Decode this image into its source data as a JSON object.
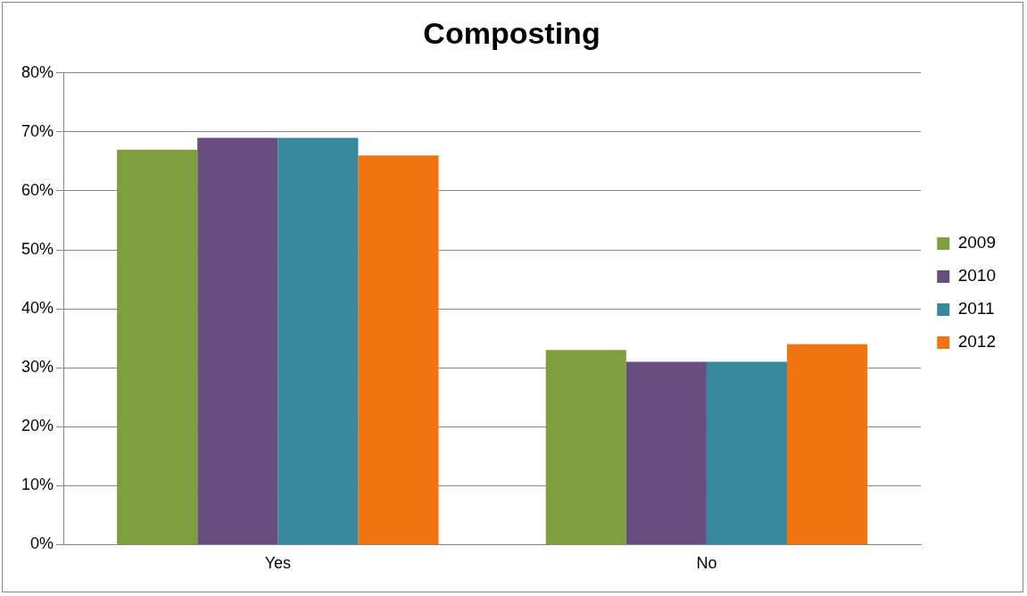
{
  "chart_data": {
    "type": "bar",
    "title": "Composting",
    "categories": [
      "Yes",
      "No"
    ],
    "series": [
      {
        "name": "2009",
        "color": "#7f9e3e",
        "values": [
          67,
          33
        ]
      },
      {
        "name": "2010",
        "color": "#684d80",
        "values": [
          69,
          31
        ]
      },
      {
        "name": "2011",
        "color": "#38889f",
        "values": [
          69,
          31
        ]
      },
      {
        "name": "2012",
        "color": "#f0750e",
        "values": [
          66,
          34
        ]
      }
    ],
    "ylim": [
      0,
      80
    ],
    "yticks": [
      {
        "value": 0,
        "label": "0%"
      },
      {
        "value": 10,
        "label": "10%"
      },
      {
        "value": 20,
        "label": "20%"
      },
      {
        "value": 30,
        "label": "30%"
      },
      {
        "value": 40,
        "label": "40%"
      },
      {
        "value": 50,
        "label": "50%"
      },
      {
        "value": 60,
        "label": "60%"
      },
      {
        "value": 70,
        "label": "70%"
      },
      {
        "value": 80,
        "label": "80%"
      }
    ],
    "grid": "y",
    "legend": "right"
  }
}
